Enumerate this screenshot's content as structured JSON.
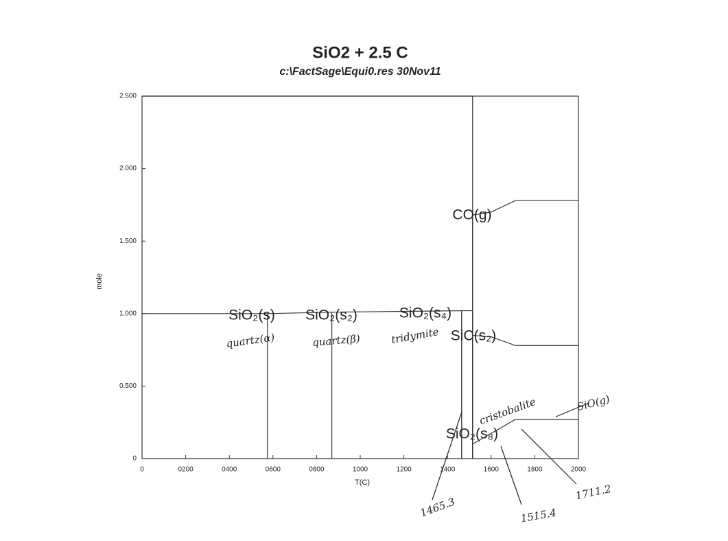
{
  "chart_data": {
    "type": "line",
    "title": "SiO2 +  2.5 C",
    "subtitle": "c:\\FactSage\\Equi0.res  30Nov11",
    "x_label": "T(C)",
    "y_label": "mole",
    "xlim": [
      0,
      2000
    ],
    "ylim": [
      0,
      2.5
    ],
    "xticks": [
      0,
      {
        "value": 200,
        "label": "0200"
      },
      {
        "value": 400,
        "label": "0400"
      },
      {
        "value": 600,
        "label": "0600"
      },
      {
        "value": 800,
        "label": "0800"
      },
      1000,
      1200,
      1400,
      1600,
      1800,
      2000
    ],
    "yticks": [
      0,
      {
        "value": 0.5,
        "label": "0.500"
      },
      {
        "value": 1,
        "label": "1.000"
      },
      {
        "value": 1.5,
        "label": "1.500"
      },
      {
        "value": 2,
        "label": "2.000"
      },
      {
        "value": 2.5,
        "label": "2.500"
      }
    ],
    "color": "#333333",
    "series": [
      {
        "name": "SiO₂(s)",
        "x": [
          0,
          575,
          575
        ],
        "values": [
          1.0,
          1.0,
          0
        ]
      },
      {
        "name": "SiO₂(s₂)",
        "x": [
          575,
          870,
          870
        ],
        "values": [
          1.0,
          1.01,
          0
        ]
      },
      {
        "name": "SiO₂(s₄)",
        "x": [
          870,
          1465,
          1465
        ],
        "values": [
          1.01,
          1.02,
          0
        ]
      },
      {
        "name": "SiO₂(s₈)",
        "x": [
          1465,
          1465,
          1515,
          1515
        ],
        "values": [
          0,
          1.02,
          1.02,
          0
        ]
      },
      {
        "x": [
          0,
          1515,
          1515
        ],
        "values": [
          2.5,
          2.5,
          0
        ]
      },
      {
        "name": "CO(g)",
        "x": [
          1515,
          1515,
          1600,
          1711,
          2000
        ],
        "values": [
          0,
          1.68,
          1.7,
          1.78,
          1.78
        ]
      },
      {
        "name": "SiC(s₂)",
        "x": [
          1515,
          1515,
          1600,
          1711,
          2000
        ],
        "values": [
          0,
          0.85,
          0.84,
          0.78,
          0.78
        ]
      },
      {
        "x": [
          1515,
          1711,
          1711,
          2000
        ],
        "values": [
          0.1,
          0.27,
          0.27,
          0.27
        ]
      }
    ],
    "annotations": [
      "quartz(α)",
      "quartz(β)",
      "tridymite",
      "cristobalite",
      "SiO(g)",
      "1465.3",
      "1515.4",
      "1711.2"
    ]
  }
}
